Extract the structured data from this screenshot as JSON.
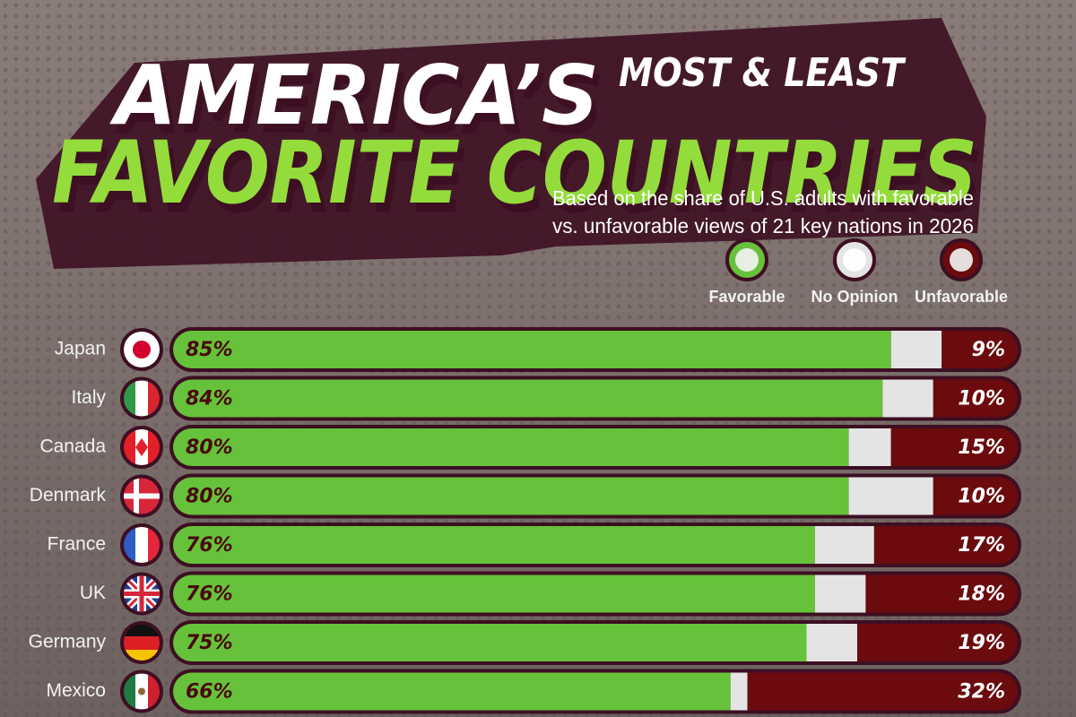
{
  "chart_data": {
    "type": "stacked-bar",
    "title_line1": "AMERICA’S",
    "title_small": "MOST & LEAST",
    "title_line2": "FAVORITE COUNTRIES",
    "subtitle_line1": "Based on the share of U.S. adults with favorable",
    "subtitle_line2": "vs. unfavorable views of 21 key nations in 2026",
    "categories": [
      "Japan",
      "Italy",
      "Canada",
      "Denmark",
      "France",
      "UK",
      "Germany",
      "Mexico"
    ],
    "xlim": [
      0,
      100
    ],
    "series": [
      {
        "name": "Favorable",
        "color": "#66c23a",
        "values": [
          85,
          84,
          80,
          80,
          76,
          76,
          75,
          66
        ],
        "value_labels": [
          "85%",
          "84%",
          "80%",
          "80%",
          "76%",
          "76%",
          "75%",
          "66%"
        ]
      },
      {
        "name": "No Opinion",
        "color": "#e4e4e4",
        "values": [
          6,
          6,
          5,
          10,
          7,
          6,
          6,
          2
        ]
      },
      {
        "name": "Unfavorable",
        "color": "#6b0b0e",
        "values": [
          9,
          10,
          15,
          10,
          17,
          18,
          19,
          32
        ],
        "value_labels": [
          "9%",
          "10%",
          "15%",
          "10%",
          "17%",
          "18%",
          "19%",
          "32%"
        ]
      }
    ]
  }
}
